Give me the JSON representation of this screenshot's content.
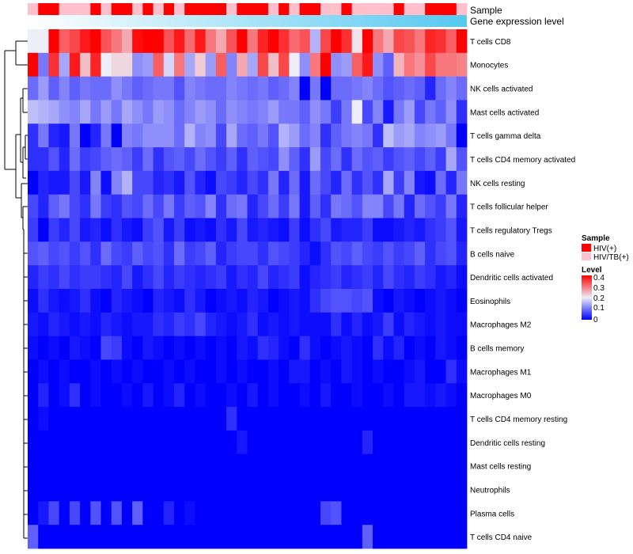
{
  "chart_data": {
    "type": "heatmap",
    "title": "",
    "annotation_tracks": [
      "Sample",
      "Gene expression level"
    ],
    "rows": [
      "T cells CD8",
      "Monocytes",
      "NK cells activated",
      "Mast cells activated",
      "T cells gamma delta",
      "T cells CD4 memory activated",
      "NK cells resting",
      "T cells follicular helper",
      "T cells regulatory  Tregs",
      "B cells naive",
      "Dendritic cells activated",
      "Eosinophils",
      "Macrophages M2",
      "B cells memory",
      "Macrophages M1",
      "Macrophages M0",
      "T cells CD4 memory resting",
      "Dendritic cells resting",
      "Mast cells resting",
      "Neutrophils",
      "Plasma cells",
      "T cells CD4 naive"
    ],
    "n_samples": 42,
    "sample_groups": [
      "HIV/TB(+)",
      "HIV(+)",
      "HIV(+)",
      "HIV/TB(+)",
      "HIV/TB(+)",
      "HIV/TB(+)",
      "HIV(+)",
      "HIV/TB(+)",
      "HIV(+)",
      "HIV(+)",
      "HIV/TB(+)",
      "HIV(+)",
      "HIV/TB(+)",
      "HIV(+)",
      "HIV/TB(+)",
      "HIV(+)",
      "HIV(+)",
      "HIV(+)",
      "HIV(+)",
      "HIV/TB(+)",
      "HIV(+)",
      "HIV(+)",
      "HIV(+)",
      "HIV/TB(+)",
      "HIV(+)",
      "HIV/TB(+)",
      "HIV(+)",
      "HIV(+)",
      "HIV/TB(+)",
      "HIV/TB(+)",
      "HIV(+)",
      "HIV/TB(+)",
      "HIV/TB(+)",
      "HIV/TB(+)",
      "HIV/TB(+)",
      "HIV(+)",
      "HIV/TB(+)",
      "HIV/TB(+)",
      "HIV(+)",
      "HIV(+)",
      "HIV(+)",
      "HIV/TB(+)"
    ],
    "values": [
      [
        0.2,
        0.2,
        0.4,
        0.32,
        0.34,
        0.38,
        0.4,
        0.33,
        0.3,
        0.26,
        0.39,
        0.4,
        0.4,
        0.33,
        0.38,
        0.31,
        0.38,
        0.3,
        0.26,
        0.33,
        0.4,
        0.3,
        0.37,
        0.4,
        0.36,
        0.31,
        0.33,
        0.15,
        0.34,
        0.4,
        0.36,
        0.21,
        0.4,
        0.3,
        0.26,
        0.34,
        0.33,
        0.3,
        0.37,
        0.36,
        0.32,
        0.4
      ],
      [
        0.4,
        0.1,
        0.36,
        0.14,
        0.38,
        0.24,
        0.37,
        0.2,
        0.22,
        0.22,
        0.12,
        0.13,
        0.32,
        0.18,
        0.3,
        0.14,
        0.23,
        0.13,
        0.32,
        0.11,
        0.26,
        0.14,
        0.34,
        0.24,
        0.34,
        0.2,
        0.12,
        0.3,
        0.4,
        0.12,
        0.13,
        0.32,
        0.38,
        0.12,
        0.08,
        0.25,
        0.3,
        0.28,
        0.34,
        0.3,
        0.3,
        0.29
      ],
      [
        0.09,
        0.13,
        0.08,
        0.11,
        0.08,
        0.1,
        0.09,
        0.09,
        0.12,
        0.1,
        0.08,
        0.09,
        0.1,
        0.1,
        0.07,
        0.11,
        0.1,
        0.09,
        0.09,
        0.11,
        0.1,
        0.09,
        0.1,
        0.08,
        0.09,
        0.11,
        0.0,
        0.1,
        0.0,
        0.09,
        0.09,
        0.1,
        0.11,
        0.09,
        0.07,
        0.08,
        0.09,
        0.08,
        0.03,
        0.09,
        0.11,
        0.09
      ],
      [
        0.16,
        0.15,
        0.14,
        0.12,
        0.11,
        0.14,
        0.1,
        0.13,
        0.1,
        0.14,
        0.12,
        0.1,
        0.13,
        0.12,
        0.09,
        0.11,
        0.13,
        0.12,
        0.09,
        0.12,
        0.11,
        0.1,
        0.11,
        0.13,
        0.1,
        0.1,
        0.08,
        0.12,
        0.1,
        0.05,
        0.1,
        0.2,
        0.06,
        0.11,
        0.02,
        0.1,
        0.13,
        0.06,
        0.1,
        0.08,
        0.12,
        0.04
      ],
      [
        0.04,
        0.1,
        0.03,
        0.02,
        0.1,
        0.0,
        0.03,
        0.1,
        0.0,
        0.11,
        0.1,
        0.12,
        0.12,
        0.12,
        0.09,
        0.15,
        0.11,
        0.12,
        0.06,
        0.14,
        0.09,
        0.08,
        0.1,
        0.07,
        0.15,
        0.13,
        0.09,
        0.11,
        0.04,
        0.08,
        0.1,
        0.11,
        0.1,
        0.04,
        0.16,
        0.13,
        0.14,
        0.11,
        0.12,
        0.13,
        0.1,
        0.0
      ],
      [
        0.04,
        0.04,
        0.07,
        0.03,
        0.09,
        0.05,
        0.06,
        0.08,
        0.09,
        0.08,
        0.05,
        0.09,
        0.04,
        0.07,
        0.08,
        0.06,
        0.09,
        0.07,
        0.05,
        0.08,
        0.04,
        0.08,
        0.07,
        0.06,
        0.12,
        0.08,
        0.04,
        0.13,
        0.06,
        0.09,
        0.04,
        0.09,
        0.07,
        0.08,
        0.05,
        0.07,
        0.08,
        0.06,
        0.08,
        0.05,
        0.14,
        0.07
      ],
      [
        0.0,
        0.03,
        0.02,
        0.02,
        0.06,
        0.02,
        0.11,
        0.01,
        0.11,
        0.15,
        0.06,
        0.06,
        0.03,
        0.04,
        0.02,
        0.07,
        0.03,
        0.01,
        0.06,
        0.05,
        0.03,
        0.06,
        0.04,
        0.1,
        0.03,
        0.09,
        0.02,
        0.09,
        0.06,
        0.03,
        0.09,
        0.04,
        0.07,
        0.04,
        0.14,
        0.05,
        0.11,
        0.02,
        0.01,
        0.09,
        0.03,
        0.1
      ],
      [
        0.06,
        0.03,
        0.08,
        0.1,
        0.06,
        0.04,
        0.1,
        0.05,
        0.04,
        0.07,
        0.06,
        0.09,
        0.06,
        0.1,
        0.05,
        0.08,
        0.07,
        0.11,
        0.04,
        0.09,
        0.1,
        0.03,
        0.06,
        0.09,
        0.05,
        0.1,
        0.02,
        0.08,
        0.04,
        0.1,
        0.09,
        0.07,
        0.11,
        0.11,
        0.06,
        0.1,
        0.03,
        0.09,
        0.07,
        0.05,
        0.1,
        0.03
      ],
      [
        0.05,
        0.0,
        0.05,
        0.03,
        0.06,
        0.02,
        0.03,
        0.01,
        0.04,
        0.02,
        0.01,
        0.05,
        0.07,
        0.02,
        0.05,
        0.01,
        0.02,
        0.01,
        0.04,
        0.02,
        0.06,
        0.02,
        0.03,
        0.02,
        0.01,
        0.05,
        0.01,
        0.04,
        0.06,
        0.02,
        0.03,
        0.03,
        0.05,
        0.01,
        0.01,
        0.02,
        0.03,
        0.02,
        0.04,
        0.05,
        0.07,
        0.02
      ],
      [
        0.07,
        0.08,
        0.06,
        0.07,
        0.05,
        0.07,
        0.04,
        0.09,
        0.06,
        0.05,
        0.08,
        0.06,
        0.07,
        0.04,
        0.09,
        0.05,
        0.06,
        0.08,
        0.03,
        0.05,
        0.06,
        0.06,
        0.04,
        0.07,
        0.06,
        0.05,
        0.03,
        0.01,
        0.04,
        0.07,
        0.06,
        0.08,
        0.06,
        0.05,
        0.07,
        0.05,
        0.06,
        0.08,
        0.04,
        0.06,
        0.07,
        0.03
      ],
      [
        0.03,
        0.05,
        0.04,
        0.06,
        0.04,
        0.05,
        0.05,
        0.04,
        0.03,
        0.06,
        0.02,
        0.04,
        0.06,
        0.03,
        0.05,
        0.04,
        0.03,
        0.04,
        0.05,
        0.02,
        0.04,
        0.03,
        0.06,
        0.03,
        0.04,
        0.05,
        0.01,
        0.03,
        0.04,
        0.05,
        0.03,
        0.04,
        0.05,
        0.03,
        0.06,
        0.04,
        0.03,
        0.05,
        0.04,
        0.02,
        0.03,
        0.01
      ],
      [
        0.01,
        0.04,
        0.02,
        0.01,
        0.02,
        0.04,
        0.01,
        0.0,
        0.03,
        0.02,
        0.01,
        0.0,
        0.03,
        0.02,
        0.01,
        0.04,
        0.02,
        0.0,
        0.01,
        0.02,
        0.01,
        0.03,
        0.02,
        0.0,
        0.01,
        0.02,
        0.01,
        0.04,
        0.06,
        0.07,
        0.07,
        0.06,
        0.07,
        0.01,
        0.0,
        0.02,
        0.01,
        0.0,
        0.01,
        0.02,
        0.01,
        0.0
      ],
      [
        0.02,
        0.01,
        0.03,
        0.02,
        0.01,
        0.02,
        0.01,
        0.03,
        0.02,
        0.01,
        0.02,
        0.02,
        0.04,
        0.03,
        0.05,
        0.04,
        0.06,
        0.03,
        0.02,
        0.01,
        0.02,
        0.04,
        0.01,
        0.02,
        0.01,
        0.02,
        0.01,
        0.01,
        0.01,
        0.04,
        0.01,
        0.03,
        0.01,
        0.02,
        0.05,
        0.01,
        0.03,
        0.02,
        0.01,
        0.02,
        0.01,
        0.01
      ],
      [
        0.01,
        0.0,
        0.01,
        0.0,
        0.02,
        0.01,
        0.0,
        0.06,
        0.05,
        0.01,
        0.0,
        0.02,
        0.01,
        0.0,
        0.01,
        0.0,
        0.01,
        0.0,
        0.01,
        0.0,
        0.02,
        0.01,
        0.04,
        0.03,
        0.01,
        0.0,
        0.04,
        0.01,
        0.0,
        0.01,
        0.02,
        0.01,
        0.0,
        0.04,
        0.01,
        0.03,
        0.0,
        0.01,
        0.0,
        0.02,
        0.01,
        0.0
      ],
      [
        0.0,
        0.01,
        0.0,
        0.01,
        0.0,
        0.0,
        0.01,
        0.0,
        0.01,
        0.0,
        0.01,
        0.0,
        0.0,
        0.01,
        0.0,
        0.01,
        0.0,
        0.0,
        0.01,
        0.0,
        0.01,
        0.0,
        0.0,
        0.01,
        0.0,
        0.02,
        0.02,
        0.0,
        0.01,
        0.0,
        0.02,
        0.01,
        0.0,
        0.01,
        0.0,
        0.0,
        0.01,
        0.02,
        0.0,
        0.0,
        0.04,
        0.01
      ],
      [
        0.0,
        0.03,
        0.0,
        0.01,
        0.04,
        0.0,
        0.01,
        0.0,
        0.0,
        0.01,
        0.0,
        0.02,
        0.0,
        0.01,
        0.03,
        0.0,
        0.01,
        0.0,
        0.0,
        0.01,
        0.0,
        0.02,
        0.0,
        0.01,
        0.0,
        0.0,
        0.01,
        0.0,
        0.02,
        0.0,
        0.0,
        0.01,
        0.0,
        0.0,
        0.01,
        0.0,
        0.02,
        0.02,
        0.01,
        0.02,
        0.01,
        0.0
      ],
      [
        0.0,
        0.01,
        0.0,
        0.0,
        0.0,
        0.0,
        0.0,
        0.0,
        0.0,
        0.0,
        0.0,
        0.0,
        0.0,
        0.0,
        0.0,
        0.0,
        0.0,
        0.0,
        0.0,
        0.04,
        0.0,
        0.0,
        0.0,
        0.0,
        0.0,
        0.0,
        0.0,
        0.0,
        0.0,
        0.0,
        0.0,
        0.0,
        0.0,
        0.0,
        0.0,
        0.0,
        0.0,
        0.0,
        0.0,
        0.0,
        0.0,
        0.0
      ],
      [
        0.0,
        0.0,
        0.0,
        0.0,
        0.0,
        0.0,
        0.0,
        0.0,
        0.0,
        0.0,
        0.0,
        0.0,
        0.0,
        0.0,
        0.0,
        0.0,
        0.0,
        0.0,
        0.0,
        0.0,
        0.02,
        0.0,
        0.0,
        0.0,
        0.0,
        0.0,
        0.0,
        0.0,
        0.0,
        0.0,
        0.0,
        0.0,
        0.03,
        0.0,
        0.0,
        0.0,
        0.0,
        0.0,
        0.0,
        0.0,
        0.0,
        0.0
      ],
      [
        0.0,
        0.0,
        0.0,
        0.0,
        0.0,
        0.0,
        0.0,
        0.0,
        0.0,
        0.0,
        0.0,
        0.0,
        0.0,
        0.0,
        0.0,
        0.0,
        0.0,
        0.0,
        0.0,
        0.0,
        0.0,
        0.0,
        0.0,
        0.0,
        0.0,
        0.0,
        0.0,
        0.0,
        0.0,
        0.0,
        0.0,
        0.0,
        0.0,
        0.0,
        0.0,
        0.0,
        0.0,
        0.0,
        0.0,
        0.0,
        0.0,
        0.0
      ],
      [
        0.0,
        0.0,
        0.0,
        0.0,
        0.0,
        0.0,
        0.0,
        0.0,
        0.0,
        0.0,
        0.0,
        0.0,
        0.0,
        0.0,
        0.0,
        0.0,
        0.0,
        0.0,
        0.0,
        0.0,
        0.0,
        0.0,
        0.0,
        0.0,
        0.0,
        0.0,
        0.0,
        0.0,
        0.0,
        0.0,
        0.0,
        0.0,
        0.0,
        0.0,
        0.0,
        0.0,
        0.0,
        0.0,
        0.0,
        0.0,
        0.0,
        0.0
      ],
      [
        0.0,
        0.02,
        0.06,
        0.0,
        0.06,
        0.0,
        0.07,
        0.0,
        0.07,
        0.0,
        0.08,
        0.0,
        0.0,
        0.03,
        0.0,
        0.01,
        0.0,
        0.0,
        0.0,
        0.0,
        0.0,
        0.0,
        0.0,
        0.0,
        0.0,
        0.0,
        0.0,
        0.0,
        0.06,
        0.07,
        0.0,
        0.0,
        0.0,
        0.0,
        0.0,
        0.0,
        0.0,
        0.0,
        0.0,
        0.0,
        0.0,
        0.0
      ],
      [
        0.08,
        0.0,
        0.0,
        0.0,
        0.0,
        0.0,
        0.0,
        0.0,
        0.0,
        0.0,
        0.0,
        0.0,
        0.0,
        0.0,
        0.0,
        0.0,
        0.0,
        0.0,
        0.0,
        0.0,
        0.0,
        0.0,
        0.0,
        0.0,
        0.0,
        0.0,
        0.0,
        0.0,
        0.0,
        0.0,
        0.0,
        0.0,
        0.08,
        0.0,
        0.0,
        0.0,
        0.0,
        0.0,
        0.0,
        0.0,
        0.0,
        0.0
      ]
    ],
    "color_scale": {
      "min": 0,
      "max": 0.4,
      "stops": [
        {
          "value": 0,
          "color": "#0000ff"
        },
        {
          "value": 0.2,
          "color": "#eeeef8"
        },
        {
          "value": 0.4,
          "color": "#ff0000"
        }
      ]
    },
    "legend": {
      "sample_title": "Sample",
      "sample_entries": [
        {
          "label": "HIV(+)",
          "color": "#ff0000"
        },
        {
          "label": "HIV/TB(+)",
          "color": "#ffc0cb"
        }
      ],
      "level_title": "Level",
      "level_ticks": [
        "0.4",
        "0.3",
        "0.2",
        "0.1",
        "0"
      ]
    },
    "gene_expression_colors": [
      "#ffffff",
      "#56c8f0"
    ]
  }
}
